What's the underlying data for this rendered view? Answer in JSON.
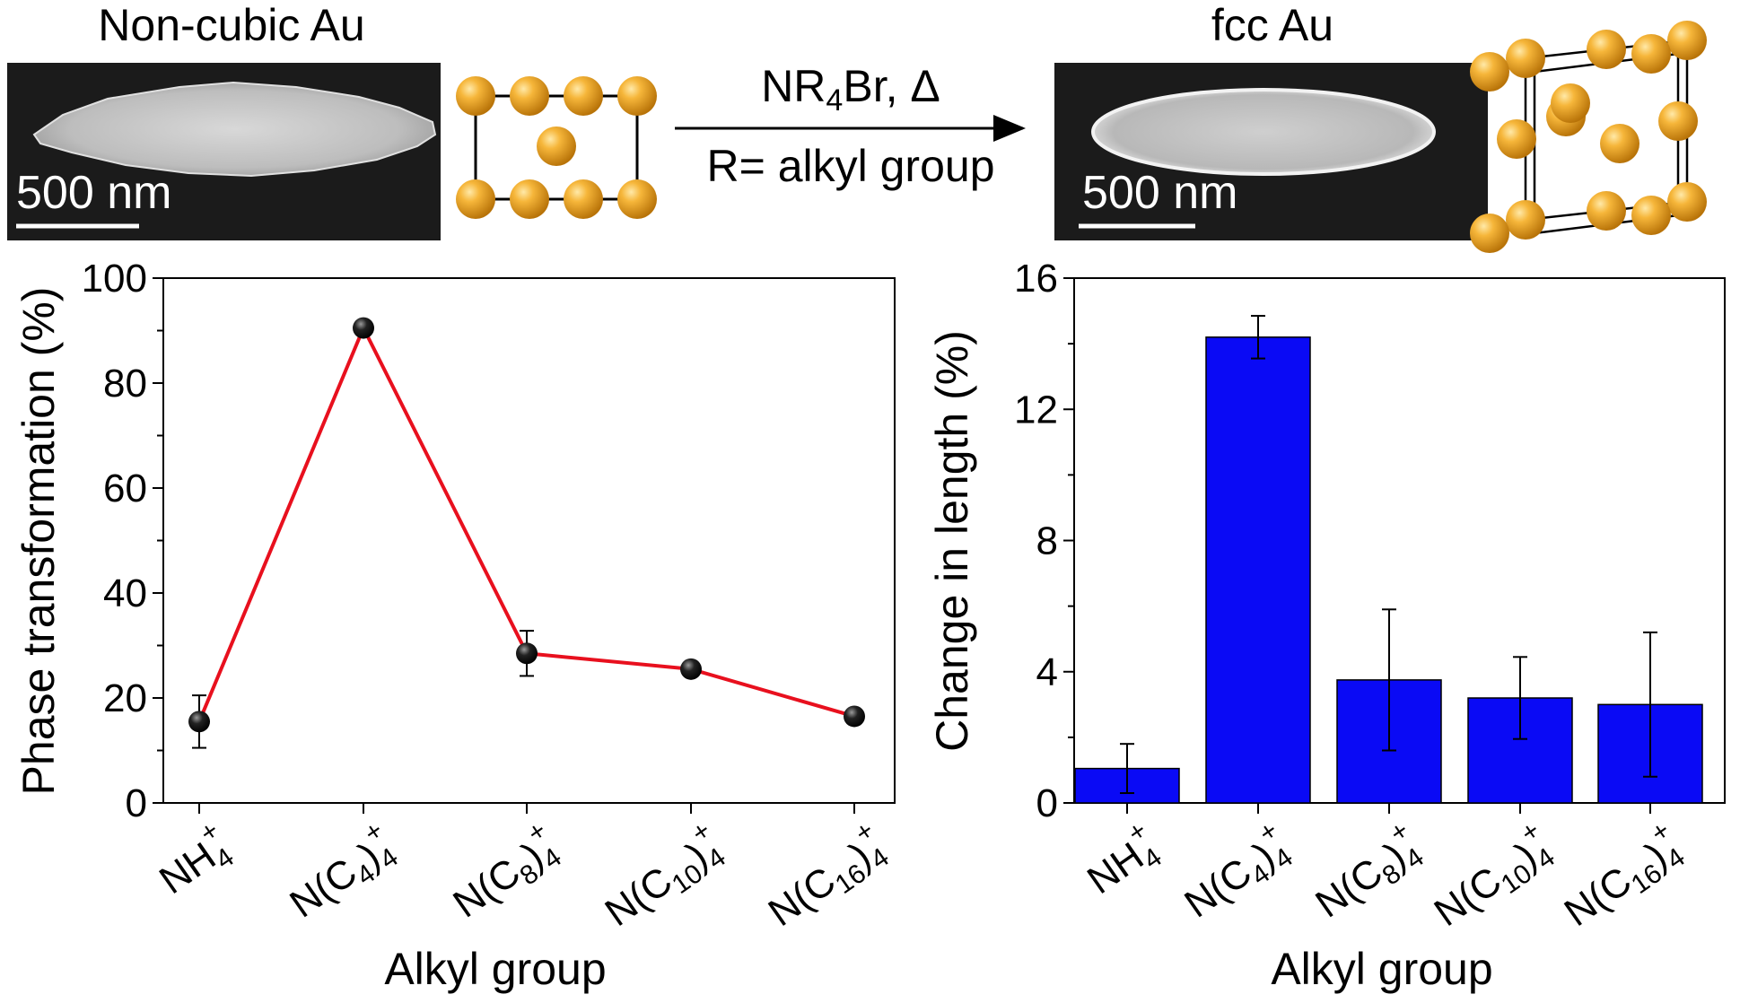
{
  "header": {
    "left_title": "Non-cubic Au",
    "right_title": "fcc Au",
    "scale_bar_left": "500 nm",
    "scale_bar_right": "500 nm",
    "reaction_top_prefix": "NR",
    "reaction_top_sub": "4",
    "reaction_top_suffix": "Br, Δ",
    "reaction_bottom": "R= alkyl group"
  },
  "colors": {
    "line": "#e8101e",
    "bar": "#0a0af5",
    "marker": "#111111",
    "sphere": "#f0a81e",
    "sem_bg": "#1b1b1b"
  },
  "chart_data": [
    {
      "type": "line",
      "xlabel": "Alkyl group",
      "ylabel": "Phase transformation (%)",
      "ylim": [
        0,
        100
      ],
      "yticks": [
        "0",
        "20",
        "40",
        "60",
        "80",
        "100"
      ],
      "categories": [
        {
          "base": "NH",
          "sub": "4",
          "sup": "+"
        },
        {
          "base": "N(C",
          "sub": "4",
          "base2": ")",
          "sub2": "4",
          "sup": "+"
        },
        {
          "base": "N(C",
          "sub": "8",
          "base2": ")",
          "sub2": "4",
          "sup": "+"
        },
        {
          "base": "N(C",
          "sub": "10",
          "base2": ")",
          "sub2": "4",
          "sup": "+"
        },
        {
          "base": "N(C",
          "sub": "16",
          "base2": ")",
          "sub2": "4",
          "sup": "+"
        }
      ],
      "values": [
        15.5,
        90.5,
        28.5,
        25.5,
        16.5
      ],
      "errors": [
        5,
        0.5,
        4.3,
        0.8,
        0.5
      ]
    },
    {
      "type": "bar",
      "xlabel": "Alkyl group",
      "ylabel": "Change in length (%)",
      "ylim": [
        0,
        16
      ],
      "yticks": [
        "0",
        "4",
        "8",
        "12",
        "16"
      ],
      "categories": [
        {
          "base": "NH",
          "sub": "4",
          "sup": "+"
        },
        {
          "base": "N(C",
          "sub": "4",
          "base2": ")",
          "sub2": "4",
          "sup": "+"
        },
        {
          "base": "N(C",
          "sub": "8",
          "base2": ")",
          "sub2": "4",
          "sup": "+"
        },
        {
          "base": "N(C",
          "sub": "10",
          "base2": ")",
          "sub2": "4",
          "sup": "+"
        },
        {
          "base": "N(C",
          "sub": "16",
          "base2": ")",
          "sub2": "4",
          "sup": "+"
        }
      ],
      "values": [
        1.05,
        14.2,
        3.75,
        3.2,
        3.0
      ],
      "errors": [
        0.75,
        0.65,
        2.15,
        1.25,
        2.2
      ]
    }
  ]
}
